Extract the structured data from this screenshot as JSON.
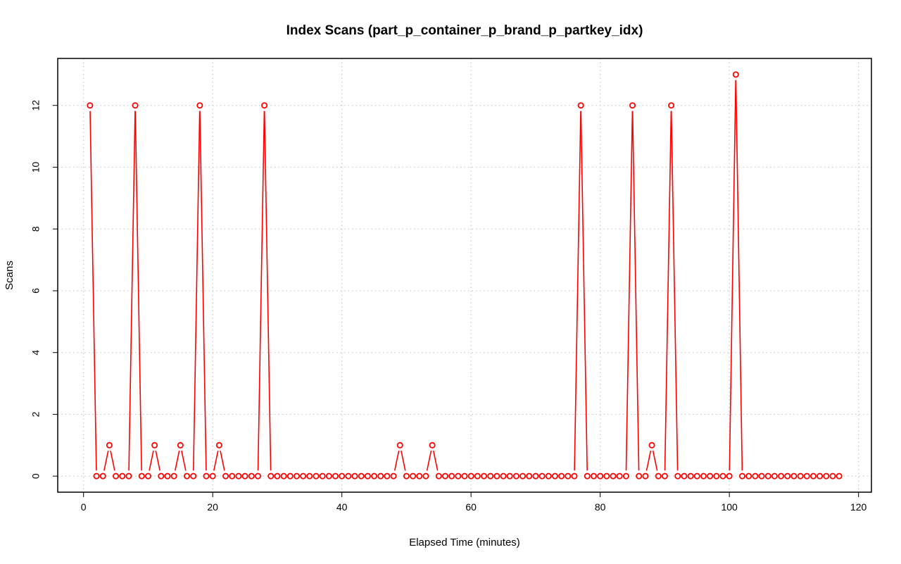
{
  "chart_data": {
    "type": "line",
    "title": "Index Scans (part_p_container_p_brand_p_partkey_idx)",
    "xlabel": "Elapsed Time (minutes)",
    "ylabel": "Scans",
    "xlim": [
      -4,
      122
    ],
    "ylim": [
      -0.52,
      13.52
    ],
    "xticks": [
      0,
      20,
      40,
      60,
      80,
      100,
      120
    ],
    "yticks": [
      0,
      2,
      4,
      6,
      8,
      10,
      12
    ],
    "grid": true,
    "marker": "open-circle",
    "color": "#ff0000",
    "x_start": 1,
    "values": [
      12,
      0,
      0,
      1,
      0,
      0,
      0,
      12,
      0,
      0,
      1,
      0,
      0,
      0,
      1,
      0,
      0,
      12,
      0,
      0,
      1,
      0,
      0,
      0,
      0,
      0,
      0,
      12,
      0,
      0,
      0,
      0,
      0,
      0,
      0,
      0,
      0,
      0,
      0,
      0,
      0,
      0,
      0,
      0,
      0,
      0,
      0,
      0,
      1,
      0,
      0,
      0,
      0,
      1,
      0,
      0,
      0,
      0,
      0,
      0,
      0,
      0,
      0,
      0,
      0,
      0,
      0,
      0,
      0,
      0,
      0,
      0,
      0,
      0,
      0,
      0,
      12,
      0,
      0,
      0,
      0,
      0,
      0,
      0,
      12,
      0,
      0,
      1,
      0,
      0,
      12,
      0,
      0,
      0,
      0,
      0,
      0,
      0,
      0,
      0,
      13,
      0,
      0,
      0,
      0,
      0,
      0,
      0,
      0,
      0,
      0,
      0,
      0,
      0,
      0,
      0,
      0
    ]
  }
}
